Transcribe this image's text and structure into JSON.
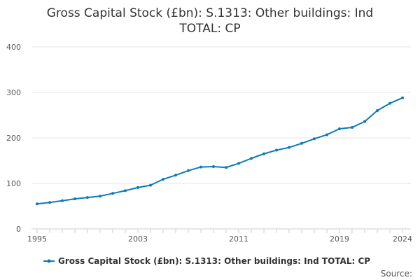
{
  "chart_data": {
    "type": "line",
    "title_lines": [
      "Gross Capital Stock (£bn): S.1313: Other buildings: Ind",
      "TOTAL: CP"
    ],
    "xlabel": "",
    "ylabel": "",
    "xlim": [
      1995,
      2024
    ],
    "ylim": [
      0,
      400
    ],
    "x_ticks": [
      1995,
      2003,
      2011,
      2019,
      2024
    ],
    "y_ticks": [
      0,
      100,
      200,
      300,
      400
    ],
    "grid": true,
    "legend_position": "bottom",
    "source_label": "Source:",
    "colors": {
      "line": "#0e7ab8",
      "grid": "#e6e6e6",
      "axis": "#cccccc"
    },
    "series": [
      {
        "name": "Gross Capital Stock (£bn): S.1313: Other buildings: Ind TOTAL: CP",
        "x": [
          1995,
          1996,
          1997,
          1998,
          1999,
          2000,
          2001,
          2002,
          2003,
          2004,
          2005,
          2006,
          2007,
          2008,
          2009,
          2010,
          2011,
          2012,
          2013,
          2014,
          2015,
          2016,
          2017,
          2018,
          2019,
          2020,
          2021,
          2022,
          2023,
          2024
        ],
        "values": [
          55,
          58,
          62,
          66,
          69,
          72,
          78,
          84,
          91,
          96,
          109,
          118,
          128,
          136,
          137,
          135,
          144,
          155,
          165,
          173,
          179,
          188,
          198,
          207,
          220,
          223,
          236,
          260,
          276,
          288
        ]
      }
    ]
  }
}
